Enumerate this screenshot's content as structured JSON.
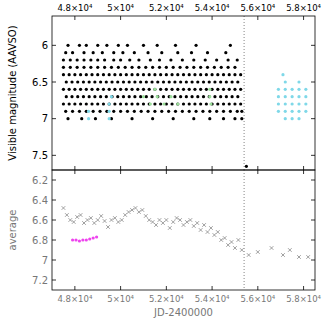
{
  "chart_data": [
    {
      "type": "scatter",
      "ylabel": "Visible magnitude (AAVSO)",
      "xlim": [
        47000,
        58500
      ],
      "ylim": [
        7.7,
        5.6
      ],
      "xticks": [
        {
          "value": 48000,
          "label": "4.8×10⁴"
        },
        {
          "value": 50000,
          "label": "5×10⁴"
        },
        {
          "value": 52000,
          "label": "5.2×10⁴"
        },
        {
          "value": 54000,
          "label": "5.4×10⁴"
        },
        {
          "value": 56000,
          "label": "5.6×10⁴"
        },
        {
          "value": 58000,
          "label": "5.8×10⁴"
        }
      ],
      "yticks": [
        6,
        6.5,
        7,
        7.5
      ],
      "grid": false,
      "vlines": [
        55400
      ],
      "series": [
        {
          "color": "#000000",
          "marker": "circle",
          "x": [
            47700,
            48200,
            48500,
            49000,
            49400,
            49900,
            50300,
            51000,
            51600,
            52400,
            53300,
            54800
          ],
          "values": [
            6.0,
            6.0,
            6.0,
            6.0,
            6.0,
            6.0,
            6.0,
            6.0,
            6.0,
            6.0,
            6.0,
            6.0
          ]
        },
        {
          "color": "#000000",
          "marker": "circle",
          "x": [
            47600,
            47900,
            48400,
            48800,
            49200,
            49700,
            50100,
            50600,
            51200,
            51800,
            52500,
            53100,
            53800,
            54600
          ],
          "values": [
            6.1,
            6.1,
            6.1,
            6.1,
            6.1,
            6.1,
            6.1,
            6.1,
            6.1,
            6.1,
            6.1,
            6.1,
            6.1,
            6.1
          ]
        },
        {
          "color": "#000000",
          "marker": "circle",
          "x": [
            47500,
            47800,
            48100,
            48400,
            48700,
            49000,
            49300,
            49700,
            50000,
            50400,
            50800,
            51300,
            51700,
            52200,
            52700,
            53200,
            53700,
            54200,
            54700,
            55100
          ],
          "values": [
            6.2,
            6.2,
            6.2,
            6.2,
            6.2,
            6.2,
            6.2,
            6.2,
            6.2,
            6.2,
            6.2,
            6.2,
            6.2,
            6.2,
            6.2,
            6.2,
            6.2,
            6.2,
            6.2,
            6.2
          ]
        },
        {
          "color": "#000000",
          "marker": "circle",
          "x": [
            47500,
            47800,
            48100,
            48400,
            48700,
            49000,
            49300,
            49600,
            49900,
            50200,
            50500,
            50800,
            51100,
            51400,
            51700,
            52000,
            52300,
            52600,
            52900,
            53200,
            53500,
            53800,
            54100,
            54400,
            54700,
            55000
          ],
          "values": [
            6.3,
            6.3,
            6.3,
            6.3,
            6.3,
            6.3,
            6.3,
            6.3,
            6.3,
            6.3,
            6.3,
            6.3,
            6.3,
            6.3,
            6.3,
            6.3,
            6.3,
            6.3,
            6.3,
            6.3,
            6.3,
            6.3,
            6.3,
            6.3,
            6.3,
            6.3
          ]
        },
        {
          "color": "#000000",
          "marker": "circle",
          "x": [
            47500,
            47750,
            48000,
            48250,
            48500,
            48750,
            49000,
            49250,
            49500,
            49750,
            50000,
            50250,
            50500,
            50750,
            51000,
            51250,
            51500,
            51750,
            52000,
            52250,
            52500,
            52750,
            53000,
            53250,
            53500,
            53750,
            54000,
            54250,
            54500,
            54750,
            55000,
            55250
          ],
          "values": [
            6.4,
            6.4,
            6.4,
            6.4,
            6.4,
            6.4,
            6.4,
            6.4,
            6.4,
            6.4,
            6.4,
            6.4,
            6.4,
            6.4,
            6.4,
            6.4,
            6.4,
            6.4,
            6.4,
            6.4,
            6.4,
            6.4,
            6.4,
            6.4,
            6.4,
            6.4,
            6.4,
            6.4,
            6.4,
            6.4,
            6.4,
            6.4
          ]
        },
        {
          "color": "#000000",
          "marker": "circle",
          "x": [
            47625,
            47875,
            48125,
            48375,
            48625,
            48875,
            49125,
            49375,
            49625,
            49875,
            50125,
            50375,
            50625,
            50875,
            51125,
            51375,
            51625,
            51875,
            52125,
            52375,
            52625,
            52875,
            53125,
            53375,
            53625,
            53875,
            54125,
            54375,
            54625,
            54875,
            55125
          ],
          "values": [
            6.5,
            6.5,
            6.5,
            6.5,
            6.5,
            6.5,
            6.5,
            6.5,
            6.5,
            6.5,
            6.5,
            6.5,
            6.5,
            6.5,
            6.5,
            6.5,
            6.5,
            6.5,
            6.5,
            6.5,
            6.5,
            6.5,
            6.5,
            6.5,
            6.5,
            6.5,
            6.5,
            6.5,
            6.5,
            6.5,
            6.5
          ]
        },
        {
          "color": "#000000",
          "marker": "circle",
          "x": [
            47500,
            47750,
            48000,
            48250,
            48500,
            48750,
            49000,
            49250,
            49500,
            49750,
            50000,
            50250,
            50500,
            50750,
            51000,
            51250,
            51500,
            51750,
            52000,
            52250,
            52500,
            52750,
            53000,
            53250,
            53500,
            53750,
            54000,
            54250,
            54500,
            54750,
            55000,
            55250
          ],
          "values": [
            6.6,
            6.6,
            6.6,
            6.6,
            6.6,
            6.6,
            6.6,
            6.6,
            6.6,
            6.6,
            6.6,
            6.6,
            6.6,
            6.6,
            6.6,
            6.6,
            6.6,
            6.6,
            6.6,
            6.6,
            6.6,
            6.6,
            6.6,
            6.6,
            6.6,
            6.6,
            6.6,
            6.6,
            6.6,
            6.6,
            6.6,
            6.6
          ]
        },
        {
          "color": "#000000",
          "marker": "circle",
          "x": [
            47625,
            47875,
            48125,
            48375,
            48625,
            48875,
            49125,
            49375,
            49625,
            49875,
            50125,
            50375,
            50625,
            50875,
            51125,
            51375,
            51625,
            51875,
            52125,
            52375,
            52625,
            52875,
            53125,
            53375,
            53625,
            53875,
            54125,
            54375,
            54625,
            54875,
            55125
          ],
          "values": [
            6.7,
            6.7,
            6.7,
            6.7,
            6.7,
            6.7,
            6.7,
            6.7,
            6.7,
            6.7,
            6.7,
            6.7,
            6.7,
            6.7,
            6.7,
            6.7,
            6.7,
            6.7,
            6.7,
            6.7,
            6.7,
            6.7,
            6.7,
            6.7,
            6.7,
            6.7,
            6.7,
            6.7,
            6.7,
            6.7,
            6.7
          ]
        },
        {
          "color": "#000000",
          "marker": "circle",
          "x": [
            47500,
            47750,
            48000,
            48250,
            48500,
            48750,
            49000,
            49250,
            49500,
            49750,
            50000,
            50250,
            50500,
            50750,
            51000,
            51250,
            51500,
            51750,
            52000,
            52250,
            52500,
            52750,
            53000,
            53250,
            53500,
            53750,
            54000,
            54250,
            54500,
            54750,
            55000,
            55250
          ],
          "values": [
            6.8,
            6.8,
            6.8,
            6.8,
            6.8,
            6.8,
            6.8,
            6.8,
            6.8,
            6.8,
            6.8,
            6.8,
            6.8,
            6.8,
            6.8,
            6.8,
            6.8,
            6.8,
            6.8,
            6.8,
            6.8,
            6.8,
            6.8,
            6.8,
            6.8,
            6.8,
            6.8,
            6.8,
            6.8,
            6.8,
            6.8,
            6.8
          ]
        },
        {
          "color": "#000000",
          "marker": "circle",
          "x": [
            47600,
            47900,
            48200,
            48500,
            48800,
            49100,
            49400,
            49700,
            50000,
            50300,
            50600,
            50900,
            51200,
            51500,
            51800,
            52100,
            52400,
            52700,
            53000,
            53300,
            53600,
            53900,
            54200,
            54500,
            54800,
            55100,
            55300
          ],
          "values": [
            6.9,
            6.9,
            6.9,
            6.9,
            6.9,
            6.9,
            6.9,
            6.9,
            6.9,
            6.9,
            6.9,
            6.9,
            6.9,
            6.9,
            6.9,
            6.9,
            6.9,
            6.9,
            6.9,
            6.9,
            6.9,
            6.9,
            6.9,
            6.9,
            6.9,
            6.9,
            6.9
          ]
        },
        {
          "color": "#000000",
          "marker": "circle",
          "x": [
            47700,
            48300,
            48900,
            49600,
            50500,
            51400,
            52300,
            53200,
            53900,
            54500,
            55000,
            55300,
            55500
          ],
          "values": [
            7.0,
            7.0,
            7.0,
            7.0,
            7.0,
            7.0,
            7.0,
            7.0,
            7.0,
            7.0,
            7.0,
            7.0,
            7.65
          ]
        },
        {
          "color": "#7fd8e8",
          "marker": "circle",
          "x": [
            48600,
            48600,
            49500,
            49500,
            49500,
            49600
          ],
          "values": [
            6.9,
            7.0,
            6.8,
            6.9,
            7.0,
            6.7
          ]
        },
        {
          "color": "#9ade9a",
          "marker": "circle",
          "x": [
            51000,
            51300,
            51600,
            51900,
            52200,
            52500,
            51500,
            53900,
            53900,
            53950
          ],
          "values": [
            6.7,
            6.8,
            6.7,
            6.8,
            6.7,
            6.8,
            6.6,
            6.6,
            6.7,
            6.8
          ]
        },
        {
          "color": "#7fd8e8",
          "marker": "circle",
          "x": [
            57100,
            57200,
            57800,
            56900,
            57200,
            57500,
            57800,
            58100,
            56900,
            57200,
            57500,
            57800,
            58100,
            56900,
            57200,
            57500,
            57800,
            58100,
            56900,
            57200,
            57500,
            57800,
            58100,
            57200,
            57500,
            57800
          ],
          "values": [
            6.4,
            6.5,
            6.5,
            6.6,
            6.6,
            6.6,
            6.6,
            6.6,
            6.7,
            6.7,
            6.7,
            6.7,
            6.7,
            6.8,
            6.8,
            6.8,
            6.8,
            6.8,
            6.9,
            6.9,
            6.9,
            6.9,
            6.9,
            7.0,
            7.0,
            7.0
          ]
        }
      ]
    },
    {
      "type": "scatter",
      "ylabel": "average",
      "xlabel": "JD-2400000",
      "xlim": [
        47000,
        58500
      ],
      "ylim": [
        7.3,
        6.1
      ],
      "xticks": [
        {
          "value": 48000,
          "label": "4.8×10⁴"
        },
        {
          "value": 50000,
          "label": "5×10⁴"
        },
        {
          "value": 52000,
          "label": "5.2×10⁴"
        },
        {
          "value": 54000,
          "label": "5.4×10⁴"
        },
        {
          "value": 56000,
          "label": "5.6×10⁴"
        },
        {
          "value": 58000,
          "label": "5.8×10⁴"
        }
      ],
      "yticks": [
        6.2,
        6.4,
        6.6,
        6.8,
        7,
        7.2
      ],
      "grid": false,
      "vlines": [
        55400
      ],
      "series": [
        {
          "color": "#888888",
          "marker": "cross",
          "x": [
            47500,
            47650,
            47800,
            47950,
            48100,
            48250,
            48400,
            48550,
            48700,
            48850,
            49000,
            49150,
            49300,
            49450,
            49600,
            49750,
            49900,
            50050,
            50200,
            50350,
            50500,
            50650,
            50800,
            50950,
            51100,
            51250,
            51400,
            51550,
            51700,
            51850,
            52000,
            52150,
            52300,
            52450,
            52600,
            52750,
            52900,
            53050,
            53200,
            53350,
            53500,
            53650,
            53800,
            53950,
            54100,
            54250,
            54400,
            54550,
            54700,
            54850,
            55000,
            55150,
            55300,
            55600,
            56000,
            56600,
            57100,
            57400,
            57800,
            58200
          ],
          "values": [
            6.48,
            6.55,
            6.6,
            6.62,
            6.57,
            6.55,
            6.63,
            6.6,
            6.58,
            6.63,
            6.6,
            6.56,
            6.61,
            6.67,
            6.6,
            6.58,
            6.62,
            6.6,
            6.55,
            6.52,
            6.5,
            6.48,
            6.52,
            6.5,
            6.56,
            6.6,
            6.62,
            6.65,
            6.6,
            6.63,
            6.6,
            6.68,
            6.62,
            6.58,
            6.6,
            6.65,
            6.62,
            6.6,
            6.66,
            6.63,
            6.7,
            6.65,
            6.72,
            6.68,
            6.75,
            6.72,
            6.8,
            6.78,
            6.85,
            6.82,
            6.88,
            6.8,
            6.9,
            6.95,
            6.92,
            6.88,
            6.95,
            6.9,
            6.97,
            6.97
          ]
        },
        {
          "color": "#ee44ee",
          "marker": "circle",
          "x": [
            47900,
            48050,
            48200,
            48350,
            48500,
            48650,
            48800,
            48950
          ],
          "values": [
            6.8,
            6.8,
            6.81,
            6.8,
            6.8,
            6.79,
            6.78,
            6.77
          ]
        }
      ]
    }
  ]
}
